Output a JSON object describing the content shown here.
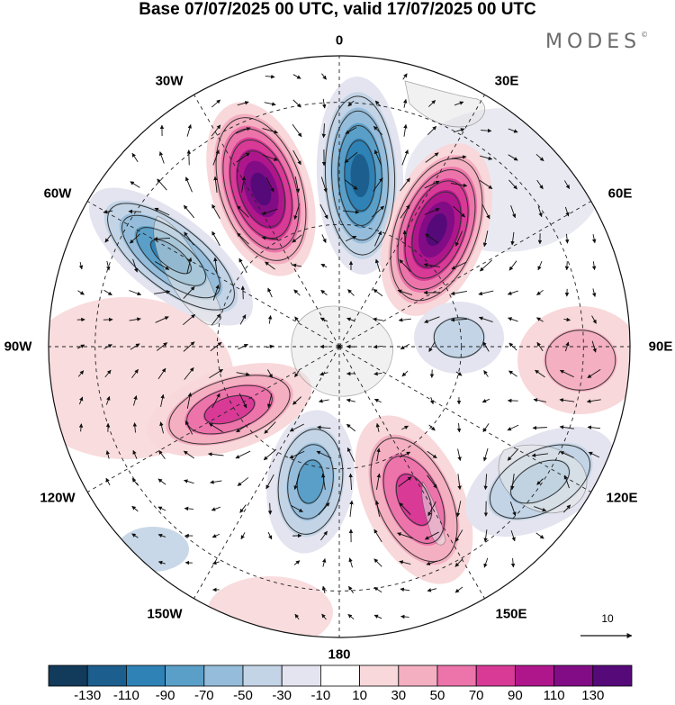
{
  "title": "Base 07/07/2025 00 UTC, valid 17/07/2025 00 UTC",
  "brand": "MODES",
  "brand_mark": "©",
  "longitude_labels": {
    "n0": "0",
    "e30": "30E",
    "e60": "60E",
    "e90": "90E",
    "e120": "120E",
    "e150": "150E",
    "s180": "180",
    "w150": "150W",
    "w120": "120W",
    "w90": "90W",
    "w60": "60W",
    "w30": "30W"
  },
  "vector_scale": {
    "label": "10",
    "icon": "arrow-right-icon"
  },
  "colorbar": {
    "labels": [
      "-130",
      "-110",
      "-90",
      "-70",
      "-50",
      "-30",
      "-10",
      "10",
      "30",
      "50",
      "70",
      "90",
      "110",
      "130"
    ],
    "colors": [
      "#123a5a",
      "#1c5f8e",
      "#2f82b6",
      "#5a9fc8",
      "#95bddb",
      "#c3d4e6",
      "#e3e4ef",
      "#ffffff",
      "#f8d8da",
      "#f4afc1",
      "#ec74aa",
      "#d83a96",
      "#b0168c",
      "#820c85",
      "#560a7a"
    ]
  },
  "anomaly_centers": [
    {
      "sign": "positive",
      "level": 6
    },
    {
      "sign": "negative",
      "level": 5
    },
    {
      "sign": "positive",
      "level": 6
    },
    {
      "sign": "negative",
      "level": 4
    },
    {
      "sign": "positive",
      "level": 3
    },
    {
      "sign": "negative",
      "level": 3
    },
    {
      "sign": "positive",
      "level": 3
    },
    {
      "sign": "negative",
      "level": 2
    },
    {
      "sign": "positive",
      "level": 1
    },
    {
      "sign": "negative",
      "level": 1
    }
  ]
}
